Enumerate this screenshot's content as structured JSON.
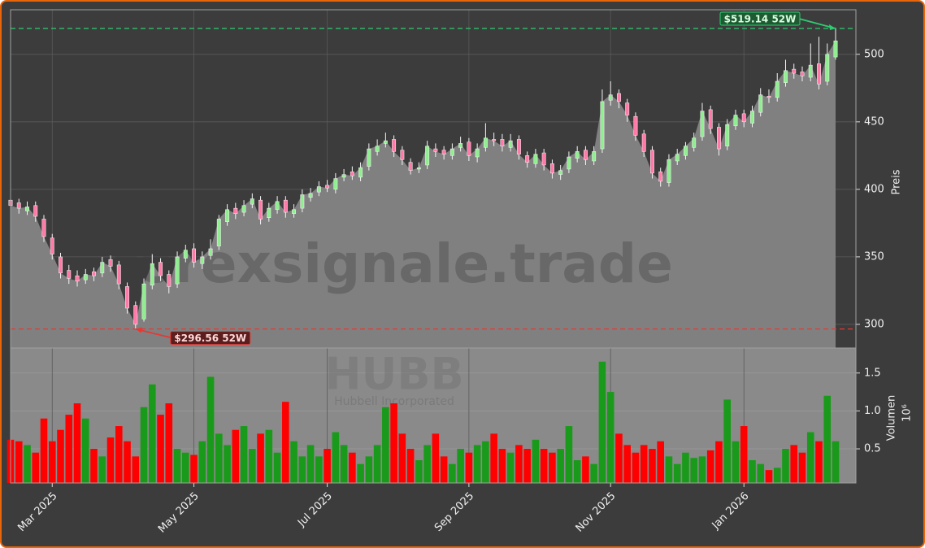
{
  "chart_data": {
    "type": "candlestick",
    "categories": [
      null,
      null,
      null,
      null,
      null,
      "Mar 2025",
      null,
      null,
      null,
      null,
      null,
      null,
      null,
      null,
      null,
      null,
      null,
      null,
      null,
      null,
      null,
      null,
      "May 2025",
      null,
      null,
      null,
      null,
      null,
      null,
      null,
      null,
      null,
      null,
      null,
      null,
      null,
      null,
      null,
      "Jul 2025",
      null,
      null,
      null,
      null,
      null,
      null,
      null,
      null,
      null,
      null,
      null,
      null,
      null,
      null,
      null,
      null,
      "Sep 2025",
      null,
      null,
      null,
      null,
      null,
      null,
      null,
      null,
      null,
      null,
      null,
      null,
      null,
      null,
      null,
      null,
      "Nov 2025",
      null,
      null,
      null,
      null,
      null,
      null,
      null,
      null,
      null,
      null,
      null,
      null,
      null,
      null,
      null,
      "Jan 2026",
      null,
      null,
      null,
      null,
      null,
      null,
      null,
      null,
      null,
      null,
      null
    ],
    "open": [
      392,
      390,
      384,
      388,
      378,
      364,
      350,
      340,
      336,
      333,
      339,
      338,
      348,
      344,
      328,
      314,
      304,
      329,
      346,
      337,
      330,
      349,
      356,
      345,
      351,
      358,
      376,
      386,
      383,
      389,
      392,
      379,
      385,
      392,
      382,
      386,
      394,
      398,
      403,
      400,
      409,
      413,
      409,
      417,
      428,
      434,
      437,
      429,
      420,
      415,
      418,
      430,
      429,
      425,
      431,
      435,
      424,
      431,
      437,
      437,
      431,
      437,
      425,
      419,
      427,
      419,
      411,
      415,
      423,
      429,
      421,
      430,
      466,
      471,
      464,
      454,
      441,
      429,
      413,
      405,
      421,
      425,
      431,
      439,
      459,
      446,
      432,
      447,
      456,
      449,
      457,
      469,
      468,
      479,
      489,
      487,
      483,
      493,
      480,
      498
    ],
    "high": [
      396,
      393,
      391,
      391,
      381,
      367,
      353,
      344,
      340,
      341,
      342,
      350,
      351,
      347,
      331,
      317,
      334,
      352,
      349,
      340,
      354,
      359,
      360,
      354,
      363,
      381,
      389,
      390,
      392,
      397,
      395,
      390,
      395,
      395,
      389,
      400,
      401,
      406,
      407,
      412,
      415,
      417,
      420,
      434,
      437,
      442,
      440,
      432,
      423,
      420,
      436,
      434,
      432,
      434,
      439,
      438,
      434,
      449,
      442,
      441,
      441,
      440,
      428,
      430,
      430,
      422,
      418,
      428,
      432,
      432,
      432,
      474,
      480,
      474,
      467,
      457,
      444,
      432,
      416,
      426,
      430,
      435,
      442,
      464,
      462,
      449,
      452,
      459,
      459,
      462,
      475,
      474,
      486,
      496,
      493,
      491,
      508,
      513,
      508,
      519.14
    ],
    "low": [
      384,
      382,
      381,
      376,
      361,
      348,
      334,
      330,
      328,
      330,
      332,
      335,
      339,
      326,
      308,
      296.56,
      302,
      326,
      332,
      323,
      327,
      346,
      342,
      341,
      348,
      355,
      373,
      378,
      380,
      386,
      374,
      376,
      382,
      379,
      379,
      383,
      391,
      395,
      398,
      397,
      406,
      407,
      406,
      414,
      425,
      431,
      424,
      418,
      411,
      412,
      415,
      424,
      422,
      422,
      428,
      421,
      420,
      428,
      432,
      428,
      428,
      422,
      416,
      416,
      414,
      408,
      407,
      412,
      420,
      418,
      418,
      427,
      462,
      460,
      450,
      436,
      424,
      408,
      402,
      402,
      418,
      422,
      428,
      436,
      441,
      425,
      429,
      444,
      446,
      446,
      454,
      464,
      465,
      476,
      482,
      480,
      480,
      474,
      477,
      496
    ],
    "close": [
      388,
      386,
      387,
      380,
      365,
      352,
      338,
      334,
      332,
      337,
      336,
      346,
      343,
      330,
      312,
      300,
      330,
      345,
      336,
      328,
      350,
      355,
      346,
      350,
      356,
      378,
      385,
      382,
      388,
      393,
      378,
      386,
      391,
      383,
      385,
      396,
      397,
      402,
      401,
      408,
      411,
      410,
      416,
      430,
      432,
      436,
      428,
      422,
      414,
      416,
      432,
      428,
      426,
      430,
      434,
      425,
      430,
      438,
      436,
      432,
      436,
      426,
      420,
      426,
      418,
      412,
      414,
      424,
      428,
      422,
      428,
      465,
      470,
      465,
      455,
      440,
      428,
      412,
      406,
      422,
      426,
      432,
      438,
      458,
      445,
      430,
      448,
      455,
      450,
      458,
      470,
      468,
      480,
      488,
      486,
      484,
      492,
      478,
      500,
      510
    ],
    "up_color": "#90ee90",
    "down_color": "#ff7aa8",
    "area_color": "#808080",
    "ylim": [
      282.5,
      533
    ],
    "yticks": [
      300,
      350,
      400,
      450,
      500
    ],
    "ylabel": "Preis",
    "grid": true,
    "annotations": [
      {
        "text": "$519.14 52W",
        "value": 519.14,
        "color": "#2ecc71"
      },
      {
        "text": "$296.56 52W",
        "value": 296.56,
        "color": "#e53935"
      }
    ],
    "watermark": "forexsignale.trade",
    "ticker": "HUBB",
    "company": "Hubbell Incorporated",
    "volume": {
      "values": [
        0.62,
        0.6,
        0.55,
        0.45,
        0.9,
        0.6,
        0.75,
        0.95,
        1.1,
        0.9,
        0.5,
        0.4,
        0.65,
        0.8,
        0.6,
        0.4,
        1.05,
        1.35,
        0.95,
        1.1,
        0.5,
        0.45,
        0.42,
        0.6,
        1.45,
        0.7,
        0.55,
        0.75,
        0.8,
        0.5,
        0.7,
        0.75,
        0.45,
        1.12,
        0.6,
        0.4,
        0.55,
        0.4,
        0.5,
        0.72,
        0.55,
        0.45,
        0.3,
        0.4,
        0.55,
        1.05,
        1.1,
        0.7,
        0.5,
        0.35,
        0.55,
        0.7,
        0.4,
        0.3,
        0.5,
        0.45,
        0.55,
        0.6,
        0.7,
        0.5,
        0.45,
        0.55,
        0.5,
        0.62,
        0.5,
        0.45,
        0.5,
        0.8,
        0.35,
        0.4,
        0.3,
        1.65,
        1.25,
        0.7,
        0.55,
        0.45,
        0.55,
        0.5,
        0.6,
        0.4,
        0.3,
        0.45,
        0.38,
        0.4,
        0.48,
        0.6,
        1.15,
        0.6,
        0.8,
        0.35,
        0.3,
        0.22,
        0.25,
        0.5,
        0.55,
        0.45,
        0.72,
        0.6,
        1.2,
        0.6
      ],
      "up_color": "#1a9a1a",
      "down_color": "#ff0000",
      "ylim": [
        0.05,
        1.83
      ],
      "yticks": [
        0.5,
        {
          "value": 1,
          "label": "1.0"
        },
        1.5
      ],
      "ylabel": "Volumen",
      "exponent": "10⁶"
    }
  }
}
